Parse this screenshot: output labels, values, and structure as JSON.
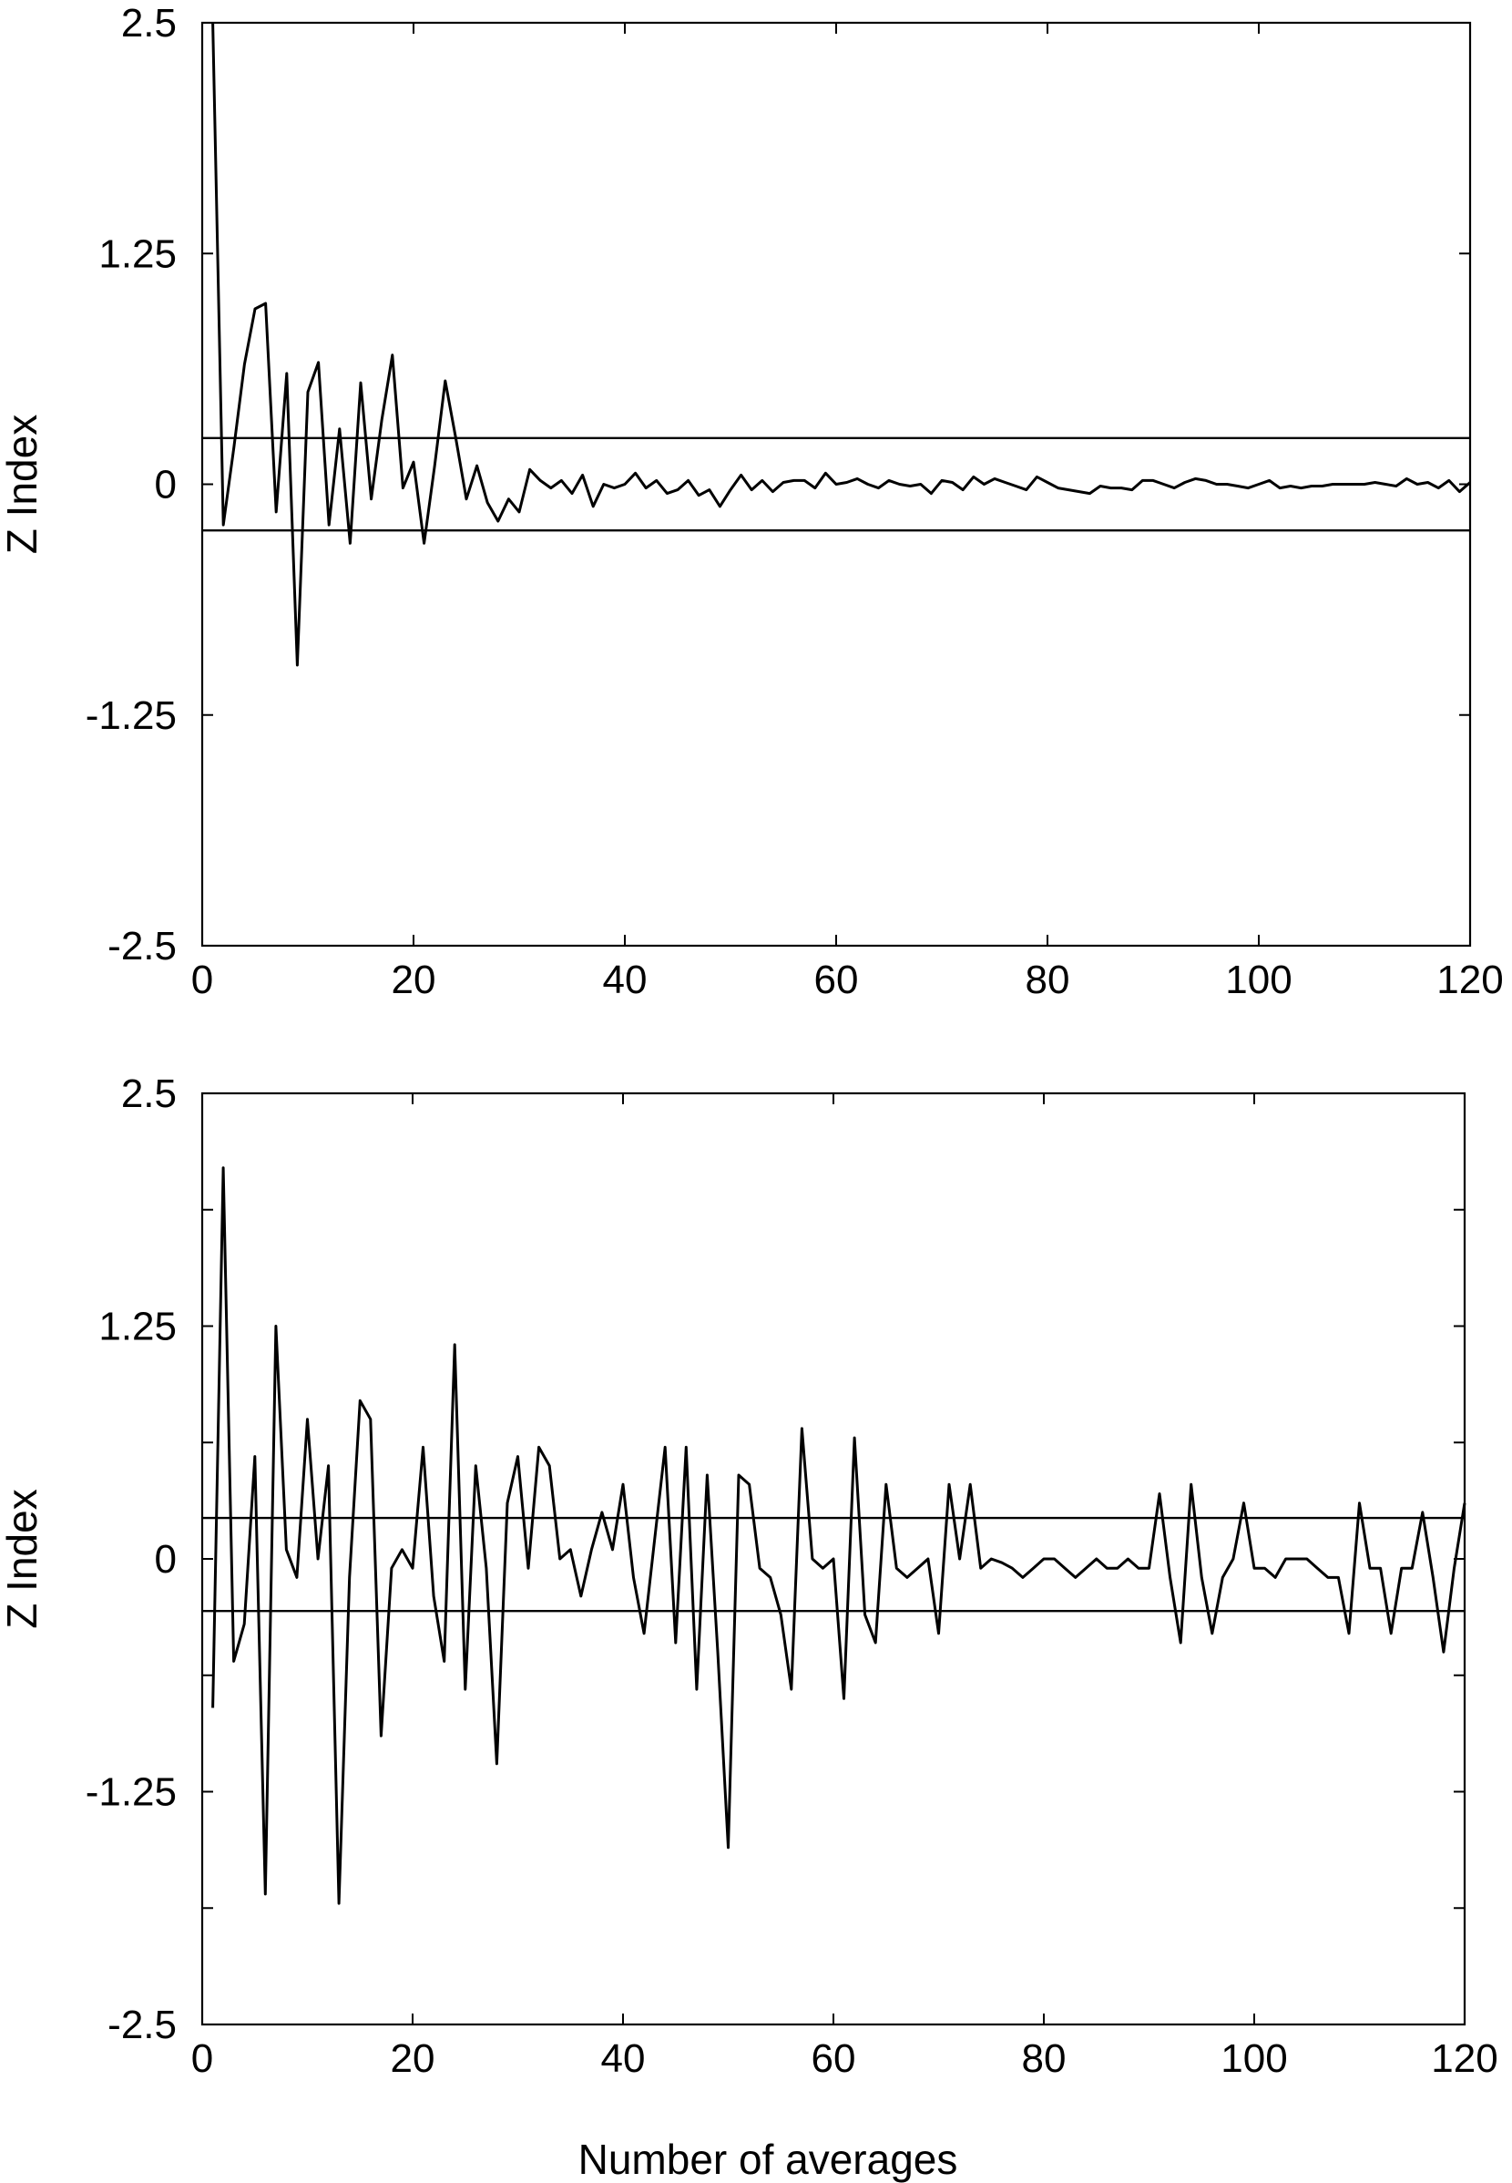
{
  "figure": {
    "xlabel": "Number of averages"
  },
  "chart_data": [
    {
      "type": "line",
      "xlabel": "",
      "ylabel": "Z Index",
      "xlim": [
        0,
        120
      ],
      "ylim": [
        -2.5,
        2.5
      ],
      "xticks": [
        0,
        20,
        40,
        60,
        80,
        100,
        120
      ],
      "yticks": [
        -2.5,
        -1.25,
        0,
        1.25,
        2.5
      ],
      "ytick_labels": [
        "-2.5",
        "-1.25",
        "0",
        "1.25",
        "2.5"
      ],
      "minor_ticks": false,
      "grid": false,
      "reference_lines": [
        0.25,
        -0.25
      ],
      "series": [
        {
          "x": [
            1,
            2,
            3,
            4,
            5,
            6,
            7,
            8,
            9,
            10,
            11,
            12,
            13,
            14,
            15,
            16,
            17,
            18,
            19,
            20,
            21,
            22,
            23,
            24,
            25,
            26,
            27,
            28,
            29,
            30,
            31,
            32,
            33,
            34,
            35,
            36,
            37,
            38,
            39,
            40,
            41,
            42,
            43,
            44,
            45,
            46,
            47,
            48,
            49,
            50,
            51,
            52,
            53,
            54,
            55,
            56,
            57,
            58,
            59,
            60,
            61,
            62,
            63,
            64,
            65,
            66,
            67,
            68,
            69,
            70,
            71,
            72,
            73,
            74,
            75,
            76,
            77,
            78,
            79,
            80,
            81,
            82,
            83,
            84,
            85,
            86,
            87,
            88,
            89,
            90,
            91,
            92,
            93,
            94,
            95,
            96,
            97,
            98,
            99,
            100,
            101,
            102,
            103,
            104,
            105,
            106,
            107,
            108,
            109,
            110,
            111,
            112,
            113,
            114,
            115,
            116,
            117,
            118,
            119,
            120
          ],
          "y": [
            2.5,
            -0.22,
            0.2,
            0.65,
            0.95,
            0.98,
            -0.15,
            0.6,
            -0.98,
            0.5,
            0.66,
            -0.22,
            0.3,
            -0.32,
            0.55,
            -0.08,
            0.35,
            0.7,
            -0.02,
            0.12,
            -0.32,
            0.1,
            0.56,
            0.25,
            -0.08,
            0.1,
            -0.1,
            -0.2,
            -0.08,
            -0.15,
            0.08,
            0.02,
            -0.02,
            0.02,
            -0.05,
            0.05,
            -0.12,
            0.0,
            -0.02,
            0.0,
            0.06,
            -0.02,
            0.02,
            -0.05,
            -0.03,
            0.02,
            -0.06,
            -0.03,
            -0.12,
            -0.03,
            0.05,
            -0.03,
            0.02,
            -0.04,
            0.01,
            0.02,
            0.02,
            -0.02,
            0.06,
            0.0,
            0.01,
            0.03,
            0.0,
            -0.02,
            0.02,
            0.0,
            -0.01,
            0.0,
            -0.05,
            0.02,
            0.01,
            -0.03,
            0.04,
            0.0,
            0.03,
            0.01,
            -0.01,
            -0.03,
            0.04,
            0.01,
            -0.02,
            -0.03,
            -0.04,
            -0.05,
            -0.01,
            -0.02,
            -0.02,
            -0.03,
            0.02,
            0.02,
            0.0,
            -0.02,
            0.01,
            0.03,
            0.02,
            0.0,
            0.0,
            -0.01,
            -0.02,
            0.0,
            0.02,
            -0.02,
            -0.01,
            -0.02,
            -0.01,
            -0.01,
            0.0,
            0.0,
            0.0,
            0.0,
            0.01,
            0.0,
            -0.01,
            0.03,
            0.0,
            0.01,
            -0.02,
            0.02,
            -0.04,
            0.01
          ]
        }
      ]
    },
    {
      "type": "line",
      "xlabel": "Number of averages",
      "ylabel": "Z Index",
      "xlim": [
        0,
        120
      ],
      "ylim": [
        -2.5,
        2.5
      ],
      "xticks": [
        0,
        20,
        40,
        60,
        80,
        100,
        120
      ],
      "yticks": [
        -2.5,
        -1.25,
        0,
        1.25,
        2.5
      ],
      "ytick_labels": [
        "-2.5",
        "-1.25",
        "0",
        "1.25",
        "2.5"
      ],
      "minor_ticks": true,
      "grid": false,
      "reference_lines": [
        0.22,
        -0.28
      ],
      "series": [
        {
          "x": [
            1,
            2,
            3,
            4,
            5,
            6,
            7,
            8,
            9,
            10,
            11,
            12,
            13,
            14,
            15,
            16,
            17,
            18,
            19,
            20,
            21,
            22,
            23,
            24,
            25,
            26,
            27,
            28,
            29,
            30,
            31,
            32,
            33,
            34,
            35,
            36,
            37,
            38,
            39,
            40,
            41,
            42,
            43,
            44,
            45,
            46,
            47,
            48,
            49,
            50,
            51,
            52,
            53,
            54,
            55,
            56,
            57,
            58,
            59,
            60,
            61,
            62,
            63,
            64,
            65,
            66,
            67,
            68,
            69,
            70,
            71,
            72,
            73,
            74,
            75,
            76,
            77,
            78,
            79,
            80,
            81,
            82,
            83,
            84,
            85,
            86,
            87,
            88,
            89,
            90,
            91,
            92,
            93,
            94,
            95,
            96,
            97,
            98,
            99,
            100,
            101,
            102,
            103,
            104,
            105,
            106,
            107,
            108,
            109,
            110,
            111,
            112,
            113,
            114,
            115,
            116,
            117,
            118,
            119,
            120
          ],
          "y": [
            -0.8,
            2.1,
            -0.55,
            -0.35,
            0.55,
            -1.8,
            1.25,
            0.05,
            -0.1,
            0.75,
            0.0,
            0.5,
            -1.85,
            -0.1,
            0.85,
            0.75,
            -0.95,
            -0.05,
            0.05,
            -0.05,
            0.6,
            -0.2,
            -0.55,
            1.15,
            -0.7,
            0.5,
            -0.05,
            -1.1,
            0.3,
            0.55,
            -0.05,
            0.6,
            0.5,
            0.0,
            0.05,
            -0.2,
            0.05,
            0.25,
            0.05,
            0.4,
            -0.1,
            -0.4,
            0.1,
            0.6,
            -0.45,
            0.6,
            -0.7,
            0.45,
            -0.5,
            -1.55,
            0.45,
            0.4,
            -0.05,
            -0.1,
            -0.3,
            -0.7,
            0.7,
            0.0,
            -0.05,
            0.0,
            -0.75,
            0.65,
            -0.3,
            -0.45,
            0.4,
            -0.05,
            -0.1,
            -0.05,
            0.0,
            -0.4,
            0.4,
            0.0,
            0.4,
            -0.05,
            0.0,
            -0.02,
            -0.05,
            -0.1,
            -0.05,
            0.0,
            0.0,
            -0.05,
            -0.1,
            -0.05,
            0.0,
            -0.05,
            -0.05,
            0.0,
            -0.05,
            -0.05,
            0.35,
            -0.1,
            -0.45,
            0.4,
            -0.1,
            -0.4,
            -0.1,
            0.0,
            0.3,
            -0.05,
            -0.05,
            -0.1,
            0.0,
            0.0,
            0.0,
            -0.05,
            -0.1,
            -0.1,
            -0.4,
            0.3,
            -0.05,
            -0.05,
            -0.4,
            -0.05,
            -0.05,
            0.25,
            -0.1,
            -0.5,
            -0.05,
            0.3
          ]
        }
      ]
    }
  ]
}
